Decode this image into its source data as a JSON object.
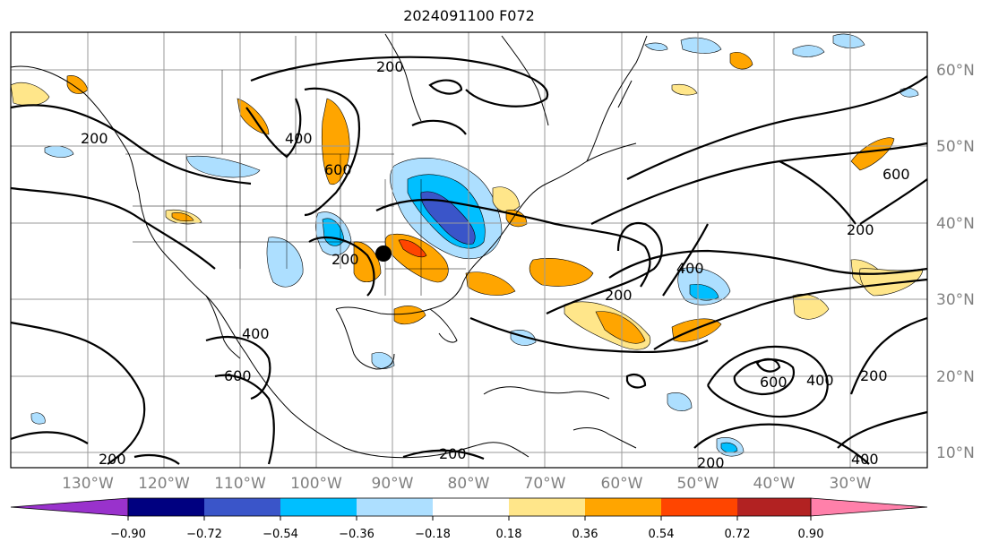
{
  "title": "2024091100 F072",
  "map": {
    "lat_labels": [
      "60°N",
      "50°N",
      "40°N",
      "30°N",
      "20°N",
      "10°N"
    ],
    "lon_labels": [
      "130°W",
      "120°W",
      "110°W",
      "100°W",
      "90°W",
      "80°W",
      "70°W",
      "60°W",
      "50°W",
      "40°W",
      "30°W"
    ],
    "contour_labels": [
      "200",
      "400",
      "600"
    ],
    "marker": "storm-center-dot"
  },
  "colorbar": {
    "ticks": [
      "−0.90",
      "−0.72",
      "−0.54",
      "−0.36",
      "−0.18",
      "0.18",
      "0.36",
      "0.54",
      "0.72",
      "0.90"
    ],
    "colors": [
      "#9932CC",
      "#000080",
      "#3A55C9",
      "#00BFFF",
      "#ADDFFF",
      "#FFFFFF",
      "#FFE68A",
      "#FFA500",
      "#FF4500",
      "#B22222",
      "#FF80AA"
    ]
  }
}
